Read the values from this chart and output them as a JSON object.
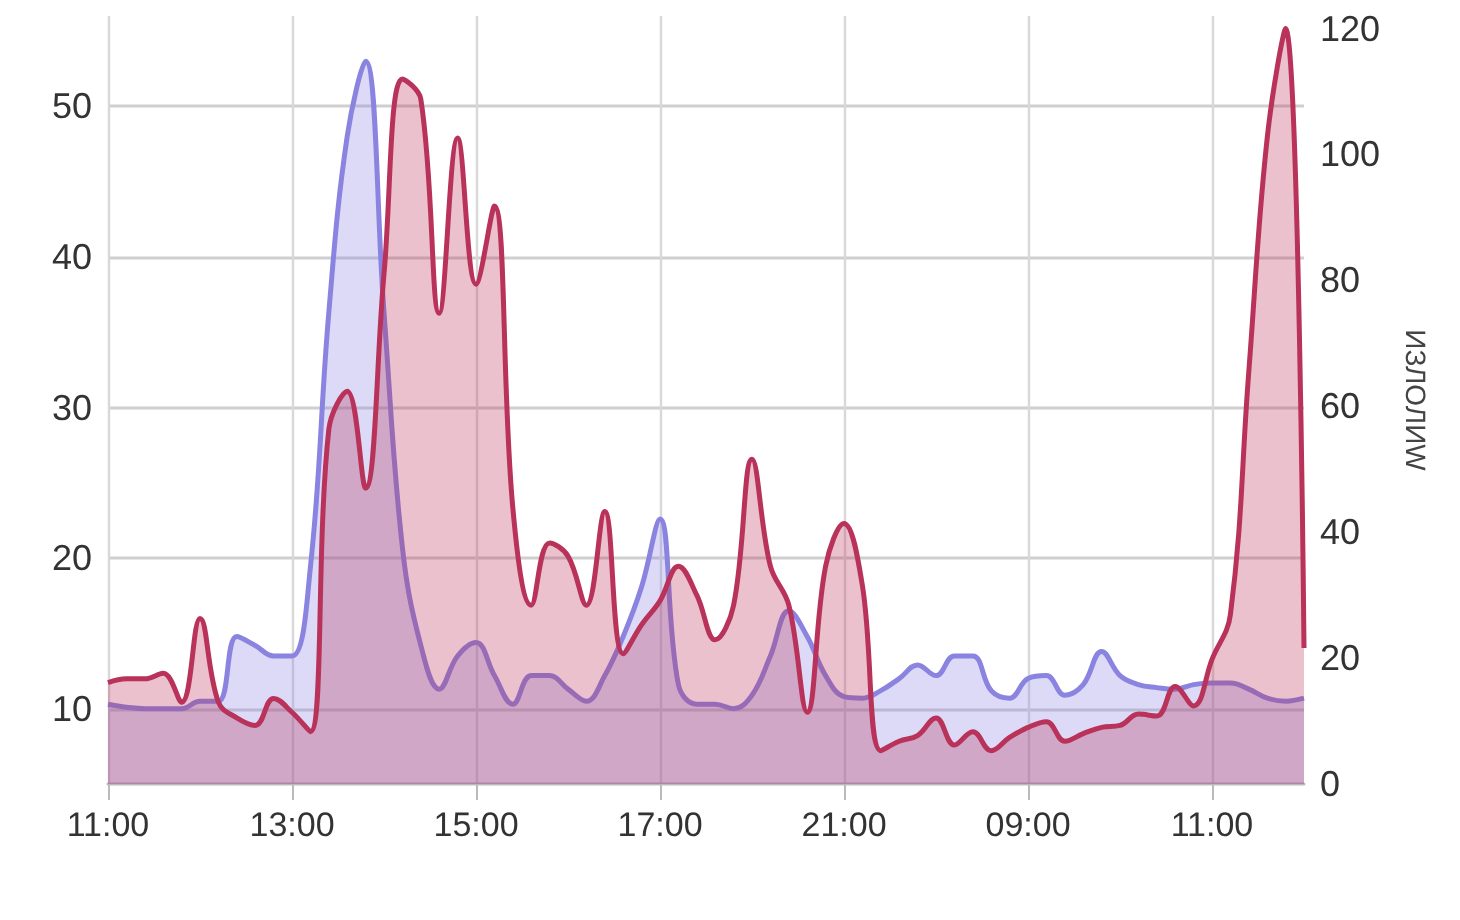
{
  "chart_data": {
    "type": "area",
    "categories": [
      "11:00",
      null,
      null,
      null,
      null,
      null,
      null,
      null,
      null,
      null,
      "13:00",
      null,
      null,
      null,
      null,
      null,
      null,
      null,
      null,
      null,
      "15:00",
      null,
      null,
      null,
      null,
      null,
      null,
      null,
      null,
      null,
      "17:00",
      null,
      null,
      null,
      null,
      null,
      null,
      null,
      null,
      null,
      "21:00",
      null,
      null,
      null,
      null,
      null,
      null,
      null,
      null,
      null,
      "09:00",
      null,
      null,
      null,
      null,
      null,
      null,
      null,
      null,
      null,
      "11:00",
      null,
      null,
      null,
      null,
      null
    ],
    "series": [
      {
        "color": "#8a84e0",
        "values": [
          10.3,
          10.1,
          10,
          10,
          10,
          10.5,
          10.5,
          14.8,
          14.2,
          13.5,
          13.5,
          19.4,
          36.3,
          48,
          53,
          36.3,
          20.7,
          14.2,
          11.3,
          13.5,
          14.4,
          12.2,
          10.3,
          12.2,
          12.2,
          11.3,
          10.5,
          12.2,
          14.8,
          18.1,
          22.6,
          11.6,
          10.3,
          10.3,
          10,
          10.9,
          13.5,
          16.5,
          14.8,
          12.2,
          10.8,
          10.7,
          11.2,
          12,
          12.9,
          12.2,
          13.5,
          13.5,
          11.2,
          10.7,
          12,
          12.2,
          10.9,
          11.6,
          13.8,
          12.2,
          11.6,
          11.4,
          11.3,
          11.6,
          11.7,
          11.7,
          11.3,
          10.7,
          10.5,
          10.7
        ]
      },
      {
        "color": "#b8325a",
        "axis": "y2",
        "values": [
          16.1,
          16.7,
          16.7,
          17.6,
          13,
          26.3,
          13,
          10.5,
          9.3,
          13.6,
          11.4,
          8.3,
          56.3,
          62.4,
          47,
          81,
          112,
          108.8,
          74.8,
          102.6,
          79.4,
          91.8,
          43.9,
          28.4,
          38.3,
          36.2,
          28.4,
          43.3,
          20.7,
          25.3,
          29.1,
          34.6,
          30,
          22.9,
          28.4,
          51.6,
          34.6,
          28.4,
          11.4,
          34.6,
          41.4,
          31.5,
          5.3,
          6.8,
          7.7,
          10.5,
          6.2,
          8.3,
          5.3,
          7.4,
          9,
          9.9,
          6.8,
          8,
          9,
          9.3,
          11.1,
          10.8,
          15.5,
          12.4,
          19.8,
          26.9,
          65.5,
          102.6,
          120,
          21.6
        ]
      }
    ],
    "y2label": "ИЗЛОЛИW",
    "ylim": [
      5,
      56
    ],
    "yticks": [
      10,
      20,
      30,
      40,
      50
    ],
    "y2lim": [
      0,
      122
    ],
    "y2ticks": [
      0,
      20,
      40,
      60,
      80,
      100,
      120
    ],
    "grid": true,
    "marker": "none"
  }
}
